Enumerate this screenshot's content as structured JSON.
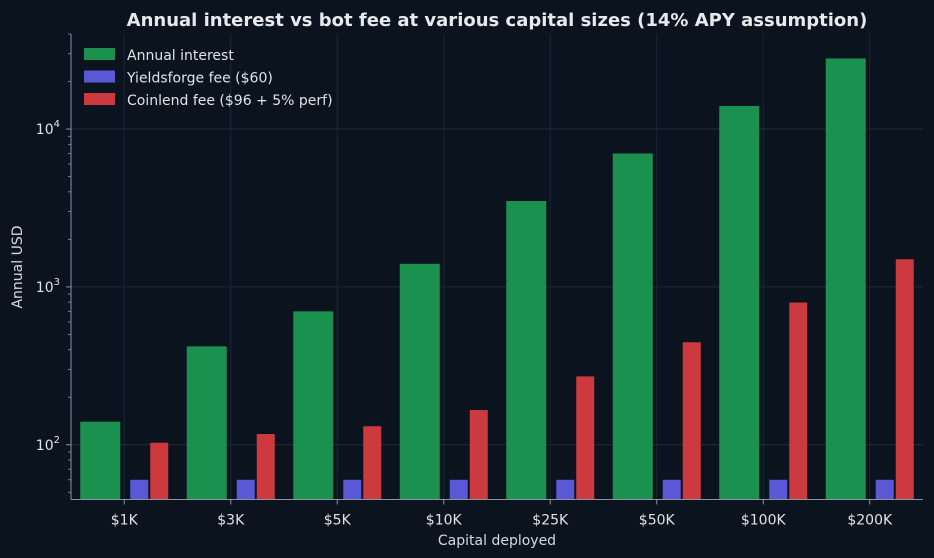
{
  "chart_data": {
    "type": "bar",
    "title": "Annual interest vs bot fee at various capital sizes (14% APY assumption)",
    "xlabel": "Capital deployed",
    "ylabel": "Annual USD",
    "yscale": "log",
    "ylim": [
      45,
      40000
    ],
    "y_ticks": [
      {
        "value": 100,
        "base": "10",
        "exp": "2"
      },
      {
        "value": 1000,
        "base": "10",
        "exp": "3"
      },
      {
        "value": 10000,
        "base": "10",
        "exp": "4"
      }
    ],
    "categories": [
      "$1K",
      "$3K",
      "$5K",
      "$10K",
      "$25K",
      "$50K",
      "$100K",
      "$200K"
    ],
    "series": [
      {
        "name": "Annual interest",
        "color": "#1b9150",
        "values": [
          140,
          420,
          700,
          1400,
          3500,
          7000,
          14000,
          28000
        ]
      },
      {
        "name": "Yieldsforge fee ($60)",
        "color": "#5b58d6",
        "values": [
          60,
          60,
          60,
          60,
          60,
          60,
          60,
          60
        ]
      },
      {
        "name": "Coinlend fee ($96 + 5% perf)",
        "color": "#cc3a40",
        "values": [
          103,
          117,
          131,
          166,
          271,
          446,
          796,
          1496
        ]
      }
    ],
    "grid": true,
    "legend_position": "top-left"
  }
}
